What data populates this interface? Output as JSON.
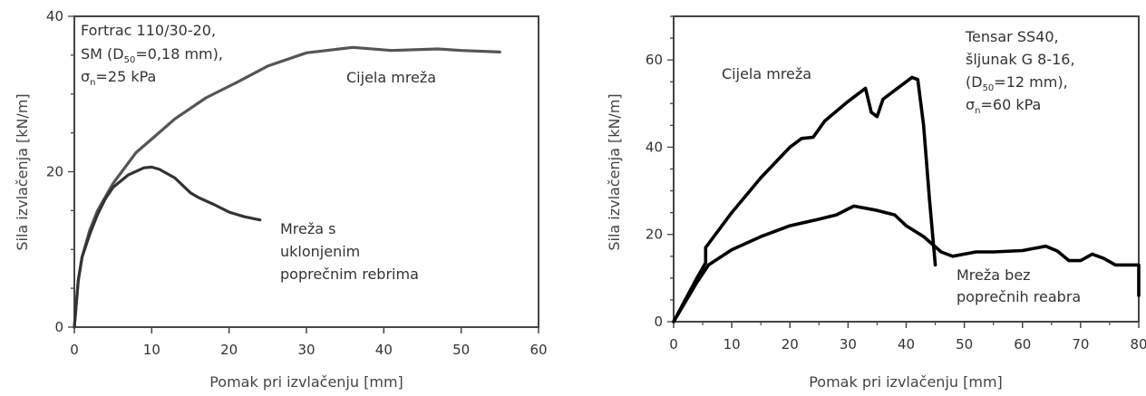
{
  "chart_data": [
    {
      "type": "line",
      "xlabel": "Pomak pri izvlačenju [mm]",
      "ylabel": "Sila izvlačenja [kN/m]",
      "xlim": [
        0,
        60
      ],
      "ylim": [
        0,
        40
      ],
      "x_ticks": [
        "0",
        "10",
        "20",
        "30",
        "40",
        "50",
        "60"
      ],
      "y_ticks": [
        "0",
        "20",
        "40"
      ],
      "info_text": {
        "line1": "Fortrac 110/30-20,",
        "line2_pre": "SM (D",
        "line2_sub": "50",
        "line2_post": "=0,18 mm),",
        "line3_pre": "σ",
        "line3_sub": "n",
        "line3_post": "=25 kPa"
      },
      "series": [
        {
          "name": "Cijela mreža",
          "color": "#555555",
          "points": [
            [
              0,
              0
            ],
            [
              0.5,
              6
            ],
            [
              1,
              9
            ],
            [
              2,
              12.5
            ],
            [
              3,
              15
            ],
            [
              5,
              18.5
            ],
            [
              8,
              22.5
            ],
            [
              10,
              24.2
            ],
            [
              13,
              26.8
            ],
            [
              17,
              29.5
            ],
            [
              21,
              31.5
            ],
            [
              25,
              33.6
            ],
            [
              30,
              35.3
            ],
            [
              36,
              36
            ],
            [
              41,
              35.6
            ],
            [
              47,
              35.8
            ],
            [
              50,
              35.6
            ],
            [
              55,
              35.4
            ]
          ]
        },
        {
          "name_lines": [
            "Mreža s",
            "uklonjenim",
            "poprečnim rebrima"
          ],
          "color": "#333333",
          "points": [
            [
              0,
              0
            ],
            [
              0.5,
              6
            ],
            [
              1,
              9
            ],
            [
              2,
              12
            ],
            [
              3,
              14.5
            ],
            [
              4,
              16.5
            ],
            [
              5,
              18
            ],
            [
              7,
              19.6
            ],
            [
              9,
              20.5
            ],
            [
              10,
              20.6
            ],
            [
              11,
              20.3
            ],
            [
              13,
              19.2
            ],
            [
              15,
              17.3
            ],
            [
              16,
              16.7
            ],
            [
              18,
              15.8
            ],
            [
              20,
              14.8
            ],
            [
              22,
              14.2
            ],
            [
              24,
              13.8
            ]
          ]
        }
      ]
    },
    {
      "type": "line",
      "xlabel": "Pomak pri izvlačenju [mm]",
      "ylabel": "Sila izvlačenja [kN/m]",
      "xlim": [
        0,
        80
      ],
      "ylim": [
        0,
        70
      ],
      "x_ticks": [
        "0",
        "10",
        "20",
        "30",
        "40",
        "50",
        "60",
        "70",
        "80"
      ],
      "y_ticks": [
        "0",
        "20",
        "40",
        "60"
      ],
      "info_text": {
        "line1": "Tensar SS40,",
        "line2": "šljunak G 8-16,",
        "line3_pre": "(D",
        "line3_sub": "50",
        "line3_post": "=12 mm),",
        "line4_pre": "σ",
        "line4_sub": "n",
        "line4_post": "=60 kPa"
      },
      "series": [
        {
          "name": "Cijela mreža",
          "color": "#000000",
          "points": [
            [
              0,
              0
            ],
            [
              2,
              5
            ],
            [
              4,
              10
            ],
            [
              5.5,
              13.5
            ],
            [
              5.5,
              17
            ],
            [
              10,
              25
            ],
            [
              15,
              33
            ],
            [
              20,
              40
            ],
            [
              22,
              42
            ],
            [
              24,
              42.3
            ],
            [
              26,
              46
            ],
            [
              30,
              50.5
            ],
            [
              33,
              53.5
            ],
            [
              34,
              48
            ],
            [
              35,
              47
            ],
            [
              36,
              51
            ],
            [
              38,
              53
            ],
            [
              41,
              56
            ],
            [
              42,
              55.5
            ],
            [
              43,
              45
            ],
            [
              44,
              28
            ],
            [
              45,
              13
            ]
          ]
        },
        {
          "name_lines": [
            "Mreža bez",
            "poprečnih reabra"
          ],
          "color": "#000000",
          "points": [
            [
              0,
              0
            ],
            [
              2,
              4.5
            ],
            [
              4,
              9
            ],
            [
              6,
              13
            ],
            [
              10,
              16.5
            ],
            [
              15,
              19.5
            ],
            [
              20,
              22
            ],
            [
              25,
              23.5
            ],
            [
              28,
              24.5
            ],
            [
              31,
              26.5
            ],
            [
              35,
              25.5
            ],
            [
              38,
              24.5
            ],
            [
              40,
              22
            ],
            [
              43,
              19.5
            ],
            [
              46,
              16
            ],
            [
              48,
              15
            ],
            [
              50,
              15.5
            ],
            [
              52,
              16
            ],
            [
              55,
              16
            ],
            [
              60,
              16.3
            ],
            [
              64,
              17.3
            ],
            [
              66,
              16.2
            ],
            [
              68,
              14
            ],
            [
              70,
              14
            ],
            [
              72,
              15.5
            ],
            [
              74,
              14.5
            ],
            [
              76,
              13
            ],
            [
              80,
              13
            ],
            [
              80,
              6
            ]
          ]
        }
      ]
    }
  ]
}
